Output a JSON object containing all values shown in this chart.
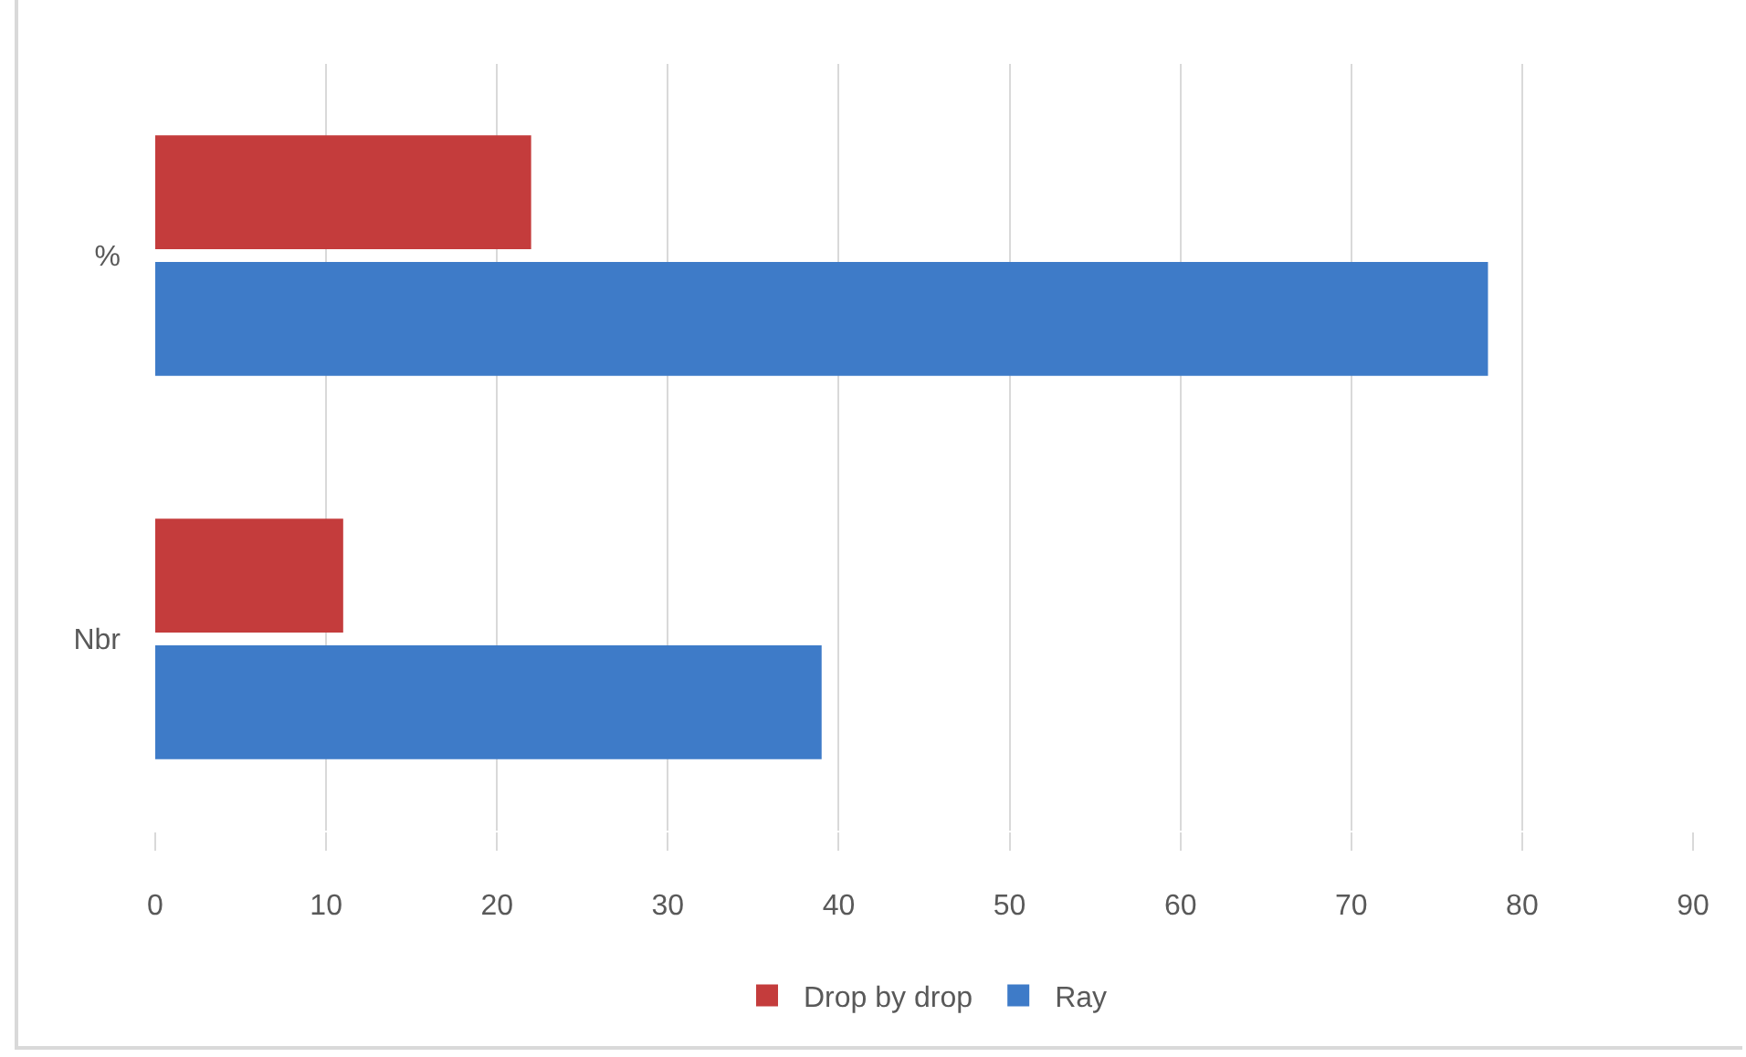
{
  "chart_data": {
    "type": "bar",
    "orientation": "horizontal",
    "categories": [
      "%",
      "Nbr"
    ],
    "series": [
      {
        "name": "Drop by drop",
        "color": "#c43c3c",
        "values": [
          22,
          11
        ]
      },
      {
        "name": "Ray",
        "color": "#3e7bc8",
        "values": [
          78,
          39
        ]
      }
    ],
    "xlim": [
      0,
      90
    ],
    "xticks": [
      0,
      10,
      20,
      30,
      40,
      50,
      60,
      70,
      80,
      90
    ],
    "grid": "x",
    "legend": "bottom"
  }
}
